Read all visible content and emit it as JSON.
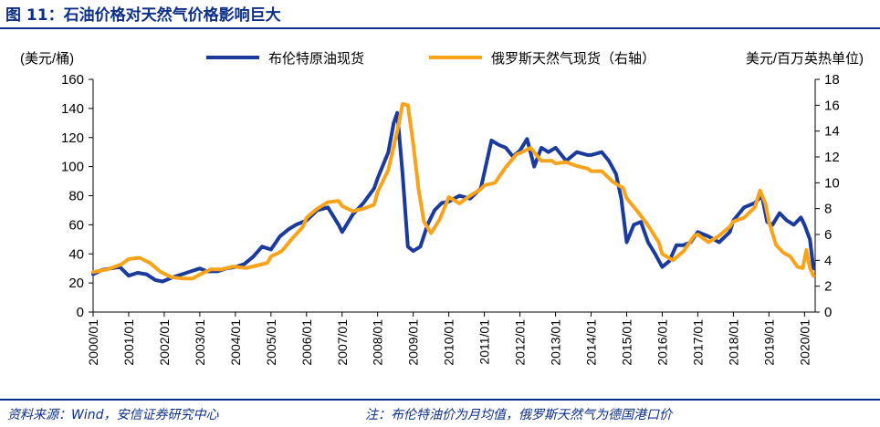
{
  "header": {
    "title": "图 11：石油价格对天然气价格影响巨大"
  },
  "footer": {
    "source": "资料来源：Wind，安信证券研究中心",
    "note": "注：布伦特油价为月均值，俄罗斯天然气为德国港口价"
  },
  "chart_data": {
    "type": "line",
    "title": "",
    "left_axis": {
      "unit": "(美元/桶)",
      "ylim": [
        0,
        160
      ],
      "ticks": [
        0,
        20,
        40,
        60,
        80,
        100,
        120,
        140,
        160
      ]
    },
    "right_axis": {
      "unit": "美元/百万英热单位)",
      "ylim": [
        0,
        18
      ],
      "ticks": [
        0,
        2,
        4,
        6,
        8,
        10,
        12,
        14,
        16,
        18
      ]
    },
    "x_range": [
      2000.0,
      2020.3
    ],
    "x_ticks": [
      "2000/01",
      "2001/01",
      "2002/01",
      "2003/01",
      "2004/01",
      "2005/01",
      "2006/01",
      "2007/01",
      "2008/01",
      "2009/01",
      "2010/01",
      "2011/01",
      "2012/01",
      "2013/01",
      "2014/01",
      "2015/01",
      "2016/01",
      "2017/01",
      "2018/01",
      "2019/01",
      "2020/01"
    ],
    "legend_position": "top",
    "colors": {
      "brent": "#1a3a9c",
      "gas": "#f8a31b",
      "axis": "#000000"
    },
    "series": [
      {
        "name": "布伦特原油现货",
        "axis": "left",
        "color": "#1a3a9c",
        "x": [
          2000.0,
          2000.25,
          2000.5,
          2000.75,
          2001.0,
          2001.25,
          2001.5,
          2001.75,
          2001.95,
          2002.25,
          2002.5,
          2002.75,
          2003.0,
          2003.2,
          2003.5,
          2003.75,
          2004.0,
          2004.25,
          2004.5,
          2004.75,
          2005.0,
          2005.25,
          2005.5,
          2005.7,
          2006.0,
          2006.3,
          2006.6,
          2006.9,
          2007.0,
          2007.3,
          2007.6,
          2007.9,
          2008.0,
          2008.3,
          2008.45,
          2008.55,
          2008.7,
          2008.85,
          2009.0,
          2009.2,
          2009.4,
          2009.6,
          2009.8,
          2010.0,
          2010.3,
          2010.6,
          2010.9,
          2011.0,
          2011.2,
          2011.4,
          2011.6,
          2011.8,
          2012.0,
          2012.2,
          2012.4,
          2012.6,
          2012.8,
          2013.0,
          2013.3,
          2013.6,
          2013.9,
          2014.0,
          2014.3,
          2014.5,
          2014.7,
          2014.85,
          2015.0,
          2015.2,
          2015.4,
          2015.6,
          2015.8,
          2016.0,
          2016.2,
          2016.4,
          2016.6,
          2016.8,
          2017.0,
          2017.3,
          2017.6,
          2017.9,
          2018.0,
          2018.3,
          2018.6,
          2018.8,
          2018.95,
          2019.1,
          2019.3,
          2019.5,
          2019.7,
          2019.9,
          2020.0,
          2020.15,
          2020.25
        ],
        "values": [
          26,
          29,
          30,
          31,
          25,
          27,
          26,
          22,
          21,
          24,
          26,
          28,
          30,
          28,
          28,
          30,
          31,
          33,
          38,
          45,
          43,
          52,
          57,
          60,
          63,
          70,
          72,
          60,
          55,
          67,
          75,
          85,
          92,
          110,
          130,
          137,
          95,
          45,
          42,
          45,
          60,
          70,
          75,
          76,
          80,
          78,
          85,
          96,
          118,
          115,
          113,
          107,
          111,
          119,
          100,
          113,
          110,
          113,
          104,
          110,
          108,
          108,
          110,
          104,
          95,
          78,
          48,
          60,
          62,
          48,
          40,
          31,
          35,
          46,
          46,
          48,
          55,
          52,
          48,
          55,
          63,
          72,
          75,
          80,
          62,
          60,
          68,
          63,
          60,
          65,
          60,
          50,
          30
        ]
      },
      {
        "name": "俄罗斯天然气现货（右轴）",
        "axis": "right",
        "color": "#f8a31b",
        "x": [
          2000.0,
          2000.4,
          2000.8,
          2001.0,
          2001.3,
          2001.6,
          2001.9,
          2002.2,
          2002.5,
          2002.8,
          2003.0,
          2003.3,
          2003.6,
          2003.9,
          2004.0,
          2004.3,
          2004.6,
          2004.9,
          2005.0,
          2005.3,
          2005.6,
          2005.9,
          2006.0,
          2006.3,
          2006.6,
          2006.9,
          2007.0,
          2007.3,
          2007.6,
          2007.9,
          2008.0,
          2008.3,
          2008.55,
          2008.7,
          2008.85,
          2009.0,
          2009.15,
          2009.3,
          2009.5,
          2009.75,
          2010.0,
          2010.3,
          2010.6,
          2010.9,
          2011.0,
          2011.3,
          2011.6,
          2011.9,
          2012.0,
          2012.3,
          2012.6,
          2012.9,
          2013.0,
          2013.3,
          2013.6,
          2013.9,
          2014.0,
          2014.3,
          2014.6,
          2014.9,
          2015.0,
          2015.3,
          2015.6,
          2015.9,
          2016.0,
          2016.3,
          2016.6,
          2016.9,
          2017.0,
          2017.3,
          2017.6,
          2017.9,
          2018.0,
          2018.3,
          2018.6,
          2018.75,
          2018.9,
          2019.0,
          2019.2,
          2019.4,
          2019.6,
          2019.8,
          2019.95,
          2020.05,
          2020.15,
          2020.25
        ],
        "values": [
          3.1,
          3.3,
          3.7,
          4.1,
          4.2,
          3.8,
          3.1,
          2.7,
          2.6,
          2.6,
          2.9,
          3.3,
          3.3,
          3.5,
          3.5,
          3.4,
          3.6,
          3.8,
          4.3,
          4.7,
          5.7,
          6.6,
          7.3,
          8.0,
          8.5,
          8.6,
          8.2,
          7.8,
          8.0,
          8.3,
          9.3,
          11.0,
          14.0,
          16.1,
          16.0,
          13.0,
          9.5,
          7.0,
          6.1,
          7.2,
          8.9,
          8.4,
          9.0,
          9.5,
          9.8,
          10.0,
          11.2,
          12.2,
          12.3,
          12.7,
          11.7,
          11.7,
          11.5,
          11.6,
          11.3,
          11.1,
          10.9,
          10.9,
          10.1,
          9.6,
          8.8,
          7.8,
          6.7,
          5.4,
          4.5,
          4.0,
          4.7,
          5.9,
          6.0,
          5.4,
          5.9,
          6.6,
          7.0,
          7.3,
          8.1,
          9.4,
          8.4,
          7.0,
          5.2,
          4.6,
          4.3,
          3.5,
          3.4,
          4.8,
          3.4,
          2.8
        ]
      }
    ]
  }
}
